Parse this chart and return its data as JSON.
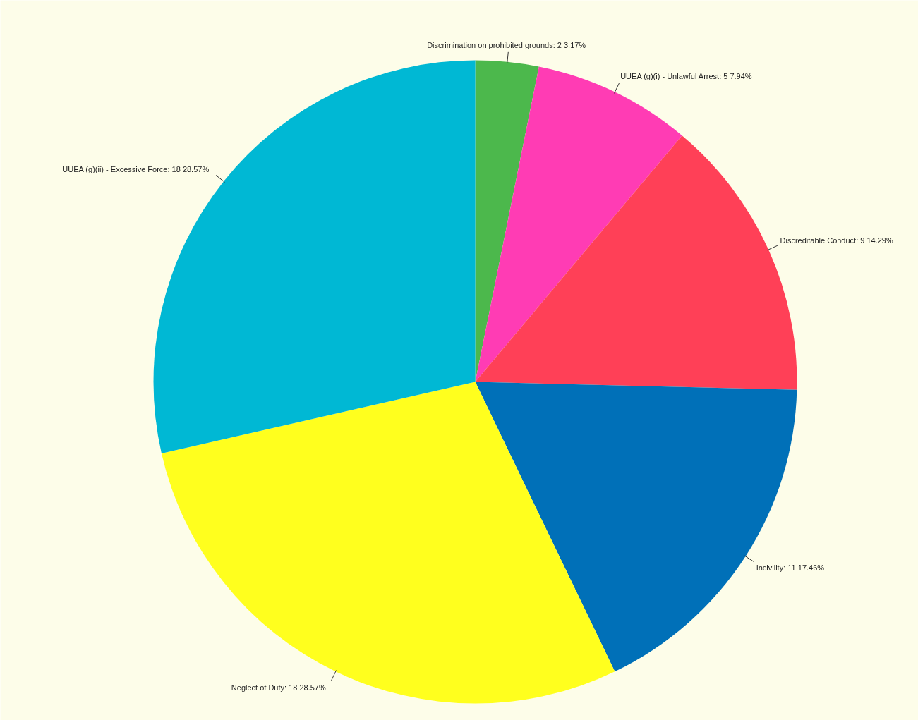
{
  "chart_data": {
    "type": "pie",
    "categories": [
      "Discrimination on prohibited grounds",
      "UUEA (g)(i) - Unlawful Arrest",
      "Discreditable Conduct",
      "Incivility",
      "Neglect of Duty",
      "UUEA (g)(ii) - Excessive Force"
    ],
    "values": [
      2,
      5,
      9,
      11,
      18,
      18
    ],
    "colors": [
      "#4cb84c",
      "#ff3cb4",
      "#ff4057",
      "#0070b8",
      "#ffff1e",
      "#00b8d4"
    ],
    "value_labels": [
      "2   3.17%",
      "5   7.94%",
      "9   14.29%",
      "11   17.46%",
      "18   28.57%",
      "18   28.57%"
    ]
  }
}
